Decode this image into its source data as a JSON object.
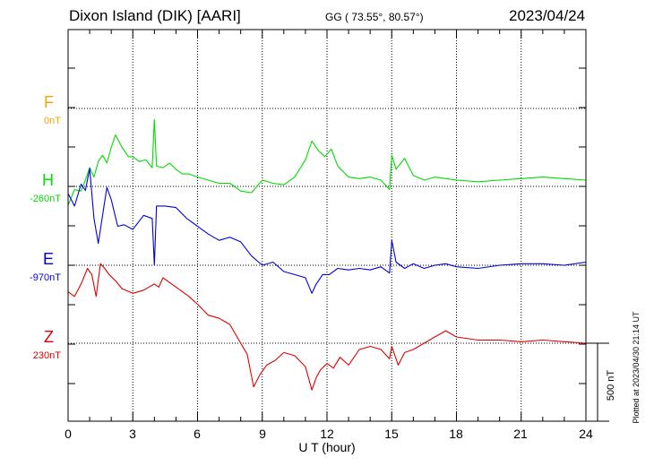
{
  "header": {
    "station": "Dixon Island (DIK)  [AARI]",
    "coords": "GG ( 73.55°,  80.57°)",
    "date": "2023/04/24"
  },
  "channels": [
    {
      "letter": "F",
      "offset": "0nT",
      "color": "#f0a800"
    },
    {
      "letter": "H",
      "offset": "-260nT",
      "color": "#00dd00"
    },
    {
      "letter": "E",
      "offset": "-970nT",
      "color": "#0000dd"
    },
    {
      "letter": "Z",
      "offset": "230nT",
      "color": "#dd0000"
    }
  ],
  "axis": {
    "xlabel": "U T (hour)",
    "xticks": [
      "0",
      "3",
      "6",
      "9",
      "12",
      "15",
      "18",
      "21",
      "24"
    ],
    "scale_label": "500 nT"
  },
  "footer": {
    "plotted": "Plotted at 2023/04/30 21:14 UT"
  },
  "chart_data": {
    "type": "line",
    "title": "Dixon Island (DIK)  [AARI]",
    "xlabel": "U T (hour)",
    "xlim": [
      0,
      24
    ],
    "x_ticks": [
      0,
      3,
      6,
      9,
      12,
      15,
      18,
      21,
      24
    ],
    "grid": true,
    "scale_bar_nT": 500,
    "series": [
      {
        "name": "F",
        "color": "#f0a800",
        "x": [],
        "y": []
      },
      {
        "name": "H",
        "color": "#00dd00",
        "x": [
          0,
          0.3,
          0.6,
          0.8,
          1.0,
          1.2,
          1.4,
          1.6,
          1.8,
          2.0,
          2.2,
          2.5,
          2.8,
          3.0,
          3.3,
          3.6,
          3.9,
          4.0,
          4.1,
          4.4,
          4.7,
          5.0,
          5.3,
          5.6,
          6.0,
          6.5,
          7.0,
          7.5,
          8.0,
          8.5,
          9.0,
          9.5,
          10.0,
          10.5,
          11.0,
          11.3,
          11.6,
          11.9,
          12.2,
          12.5,
          13.0,
          13.5,
          14.0,
          14.5,
          14.9,
          15.0,
          15.2,
          15.6,
          16.0,
          16.5,
          17.0,
          17.5,
          18.0,
          19.0,
          20.0,
          21.0,
          22.0,
          23.0,
          24.0
        ],
        "y": [
          -120,
          -20,
          -30,
          40,
          120,
          60,
          160,
          200,
          150,
          250,
          330,
          250,
          190,
          190,
          160,
          170,
          120,
          430,
          130,
          120,
          150,
          110,
          80,
          80,
          60,
          40,
          20,
          20,
          -30,
          -40,
          40,
          20,
          10,
          60,
          170,
          290,
          230,
          190,
          240,
          130,
          60,
          50,
          60,
          40,
          -20,
          200,
          110,
          180,
          70,
          40,
          60,
          50,
          40,
          30,
          40,
          50,
          60,
          50,
          40
        ]
      },
      {
        "name": "E",
        "color": "#0000dd",
        "x": [
          0,
          0.3,
          0.6,
          0.8,
          1.0,
          1.2,
          1.4,
          1.6,
          1.8,
          2.0,
          2.3,
          2.6,
          3.0,
          3.5,
          3.9,
          4.0,
          4.1,
          4.5,
          5.0,
          5.5,
          6.0,
          6.5,
          7.0,
          7.5,
          8.0,
          8.5,
          9.0,
          9.5,
          10.0,
          10.5,
          11.0,
          11.3,
          11.5,
          11.8,
          12.1,
          12.5,
          13.0,
          13.5,
          14.0,
          14.5,
          14.9,
          15.0,
          15.2,
          15.6,
          16.0,
          16.5,
          17.0,
          17.5,
          18.0,
          19.0,
          20.0,
          21.0,
          22.0,
          23.0,
          24.0
        ],
        "y": [
          460,
          380,
          520,
          480,
          620,
          300,
          140,
          320,
          500,
          420,
          250,
          260,
          230,
          320,
          300,
          0,
          380,
          380,
          370,
          300,
          250,
          200,
          160,
          180,
          150,
          60,
          0,
          20,
          -40,
          -60,
          -80,
          -180,
          -120,
          -60,
          -60,
          -20,
          -30,
          -20,
          -30,
          -10,
          -50,
          160,
          20,
          -20,
          10,
          -20,
          0,
          10,
          -10,
          -20,
          0,
          10,
          10,
          0,
          20
        ]
      },
      {
        "name": "Z",
        "color": "#dd0000",
        "x": [
          0,
          0.3,
          0.6,
          0.9,
          1.1,
          1.3,
          1.5,
          1.7,
          1.9,
          2.2,
          2.5,
          3.0,
          3.5,
          4.0,
          4.2,
          4.4,
          4.8,
          5.2,
          5.6,
          6.0,
          6.5,
          7.0,
          7.5,
          8.0,
          8.3,
          8.6,
          8.9,
          9.2,
          9.6,
          10.0,
          10.5,
          11.0,
          11.3,
          11.5,
          11.7,
          12.0,
          12.3,
          12.6,
          13.0,
          13.5,
          14.0,
          14.5,
          14.9,
          15.0,
          15.3,
          15.6,
          16.0,
          16.5,
          17.0,
          17.5,
          18.0,
          19.0,
          20.0,
          21.0,
          22.0,
          23.0,
          24.0
        ],
        "y": [
          330,
          300,
          380,
          480,
          440,
          300,
          510,
          480,
          440,
          400,
          350,
          320,
          340,
          380,
          360,
          420,
          380,
          340,
          300,
          250,
          180,
          160,
          120,
          0,
          -70,
          -280,
          -200,
          -140,
          -110,
          -60,
          -80,
          -150,
          -300,
          -220,
          -170,
          -130,
          -160,
          -90,
          -140,
          -40,
          -20,
          -40,
          -100,
          -20,
          -140,
          -60,
          -40,
          0,
          40,
          80,
          40,
          20,
          20,
          10,
          20,
          10,
          0
        ]
      }
    ]
  }
}
